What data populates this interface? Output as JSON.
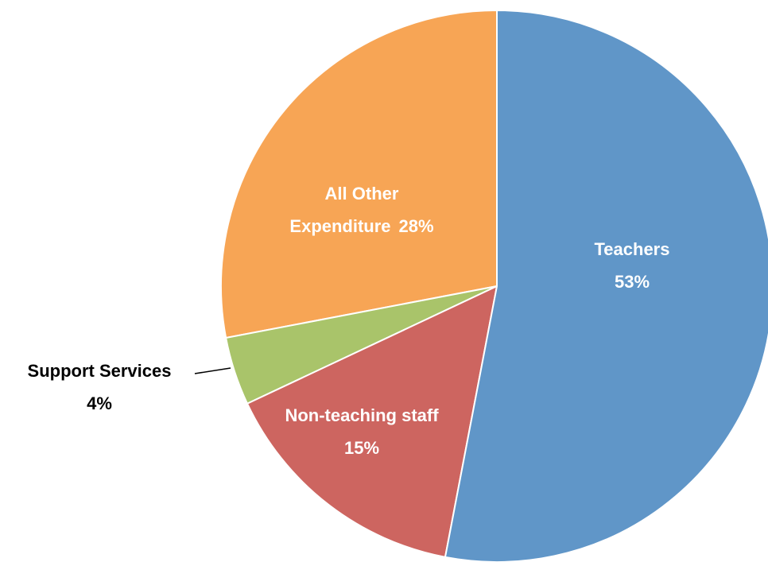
{
  "chart_data": {
    "type": "pie",
    "categories": [
      "Teachers",
      "Non-teaching staff",
      "Support Services",
      "All Other Expenditure"
    ],
    "values": [
      53,
      15,
      4,
      28
    ],
    "value_labels": [
      "53%",
      "15%",
      "4%",
      "28%"
    ],
    "colors": [
      "#6096c8",
      "#cd6560",
      "#a9c46a",
      "#f7a555"
    ]
  }
}
